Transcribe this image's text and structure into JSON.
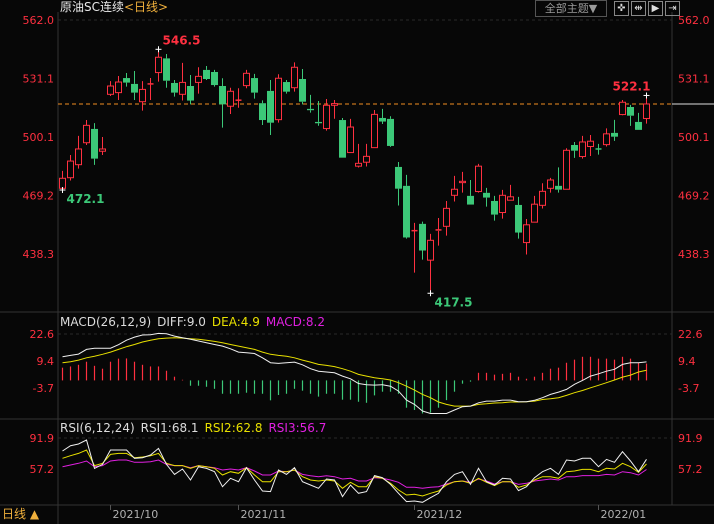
{
  "header": {
    "symbol": "原油SC连续",
    "period": "<日线>",
    "theme_button": "全部主题▼",
    "tools": [
      {
        "icon": "crosshair-icon",
        "glyph": "✜"
      },
      {
        "icon": "fit-range-icon",
        "glyph": "⇹"
      },
      {
        "icon": "play-step-icon",
        "glyph": "▶"
      },
      {
        "icon": "jump-end-icon",
        "glyph": "⇥"
      }
    ]
  },
  "footer": {
    "period_label": "日线",
    "period_arrow": "▲"
  },
  "colors": {
    "up": "#ff3040",
    "down": "#3cc878",
    "diff": "#f0f0f0",
    "dea": "#e8e000",
    "rsi3": "#e020e0",
    "axis_label": "#ff3040",
    "last_price_line": "#f08c20"
  },
  "chart_data": [
    {
      "type": "candlestick",
      "title": "原油SC连续",
      "y_ticks": [
        562.0,
        531.1,
        500.1,
        469.2,
        438.3
      ],
      "ylim": [
        417.5,
        562.0
      ],
      "x_tick_labels": [
        {
          "index": 6,
          "label": "2021/10"
        },
        {
          "index": 22,
          "label": "2021/11"
        },
        {
          "index": 44,
          "label": "2021/12"
        },
        {
          "index": 67,
          "label": "2022/01"
        }
      ],
      "last_price": 517.6,
      "annotations": [
        {
          "index": 12,
          "value": 546.5,
          "label": "546.5",
          "kind": "high"
        },
        {
          "index": 0,
          "value": 472.1,
          "label": "472.1",
          "kind": "low"
        },
        {
          "index": 46,
          "value": 417.5,
          "label": "417.5",
          "kind": "low"
        },
        {
          "index": 73,
          "value": 522.1,
          "label": "522.1",
          "kind": "high"
        }
      ],
      "ohlc_fields": [
        "open",
        "high",
        "low",
        "close"
      ],
      "ohlc": [
        [
          473,
          482.2,
          472.1,
          478.3
        ],
        [
          478.6,
          490.6,
          477.1,
          487.4
        ],
        [
          485.5,
          500.7,
          483.4,
          493.8
        ],
        [
          497.1,
          509.1,
          495.9,
          506.3
        ],
        [
          504.4,
          507.5,
          485.4,
          488.7
        ],
        [
          492.6,
          500.1,
          490.6,
          493.8
        ],
        [
          522.7,
          529.7,
          521.8,
          527.1
        ],
        [
          523.6,
          532.4,
          519.7,
          529.2
        ],
        [
          531.3,
          534,
          526.8,
          528.9
        ],
        [
          528.2,
          535,
          519.7,
          523.6
        ],
        [
          518.8,
          529.7,
          514.1,
          525.3
        ],
        [
          527.8,
          531.3,
          519.7,
          528.2
        ],
        [
          534.2,
          546.5,
          529.4,
          542.3
        ],
        [
          541.7,
          544,
          526.2,
          529.9
        ],
        [
          528.7,
          530.3,
          521.5,
          523.6
        ],
        [
          522.7,
          539.3,
          519.4,
          529
        ],
        [
          527.1,
          532.9,
          517.4,
          519.4
        ],
        [
          529,
          537,
          523.1,
          532.2
        ],
        [
          535.6,
          537.7,
          530.3,
          530.8
        ],
        [
          534.5,
          535.6,
          526.8,
          527.6
        ],
        [
          527.1,
          531.2,
          505.1,
          517.4
        ],
        [
          516.4,
          526.2,
          512.3,
          524.3
        ],
        [
          519.4,
          525.9,
          515.6,
          519.6
        ],
        [
          527.3,
          535.6,
          525.9,
          533.8
        ],
        [
          531.3,
          533.5,
          520.4,
          523.6
        ],
        [
          518,
          519.5,
          506.5,
          509.1
        ],
        [
          524.5,
          530.3,
          501.2,
          507.7
        ],
        [
          509.3,
          533.3,
          507.7,
          531.2
        ],
        [
          529.2,
          530.3,
          523.1,
          524.1
        ],
        [
          526.2,
          539.6,
          524.1,
          537
        ],
        [
          530.8,
          536.1,
          517.4,
          518.8
        ],
        [
          515,
          522.4,
          513,
          514.3
        ],
        [
          508.1,
          519.2,
          506.1,
          507.4
        ],
        [
          504.6,
          520.2,
          503.5,
          516.9
        ],
        [
          516.9,
          519.7,
          509.8,
          517.8
        ],
        [
          509.1,
          510.2,
          489.2,
          489.2
        ],
        [
          491.9,
          509.7,
          491.9,
          505.4
        ],
        [
          484.7,
          496.5,
          484,
          486.2
        ],
        [
          486.8,
          496.5,
          484.5,
          489.9
        ],
        [
          494.5,
          514.4,
          494.5,
          512.1
        ],
        [
          510.2,
          515,
          507,
          508.3
        ],
        [
          509.7,
          511.1,
          494.9,
          495.4
        ],
        [
          484.3,
          486.9,
          463.9,
          472.8
        ],
        [
          474.3,
          480.1,
          446.4,
          447
        ],
        [
          450.5,
          454.7,
          428.4,
          450.6
        ],
        [
          454.2,
          455.4,
          435.3,
          440.1
        ],
        [
          435,
          448.9,
          417.5,
          445.5
        ],
        [
          450.5,
          457.3,
          442.7,
          451
        ],
        [
          452.9,
          466.3,
          448,
          462.4
        ],
        [
          469.3,
          479.6,
          466,
          472.5
        ],
        [
          476,
          481.7,
          470.7,
          476.7
        ],
        [
          469,
          477.4,
          464.4,
          464.4
        ],
        [
          471.3,
          485.9,
          470.7,
          484.7
        ],
        [
          470.6,
          473.2,
          463.3,
          468.1
        ],
        [
          466.3,
          469,
          455.9,
          459.1
        ],
        [
          460.2,
          472.2,
          457,
          469.3
        ],
        [
          466.7,
          474.8,
          466.7,
          468.5
        ],
        [
          464.2,
          468.5,
          446.4,
          449.6
        ],
        [
          444.3,
          456.8,
          438,
          453.7
        ],
        [
          455.1,
          469,
          455.1,
          464.6
        ],
        [
          464,
          475.7,
          462.3,
          471.4
        ],
        [
          473,
          478.5,
          470.7,
          477.4
        ],
        [
          474.3,
          484.1,
          470.7,
          472.3
        ],
        [
          472.5,
          494.2,
          472.5,
          493.1
        ],
        [
          495.9,
          497.5,
          489.1,
          492.9
        ],
        [
          489.8,
          500.7,
          488.7,
          497.5
        ],
        [
          495.1,
          501.2,
          490.1,
          497.9
        ],
        [
          493.8,
          496.5,
          490.8,
          493.5
        ],
        [
          496.1,
          504.7,
          495.1,
          501.8
        ],
        [
          502.3,
          509.2,
          498.1,
          500.3
        ],
        [
          512,
          519.7,
          511.6,
          518.5
        ],
        [
          516,
          517.1,
          506,
          511.4
        ],
        [
          508.1,
          512.9,
          503.9,
          503.9
        ],
        [
          509.9,
          522.1,
          507.2,
          517.6
        ]
      ]
    },
    {
      "type": "macd",
      "params": "MACD(26,12,9)",
      "legend": {
        "diff": "DIFF:9.0",
        "dea": "DEA:4.9",
        "macd": "MACD:8.2"
      },
      "y_ticks": [
        22.6,
        9.4,
        -3.7
      ],
      "diff": [
        11.5,
        12.2,
        12.8,
        15.1,
        15.7,
        15.7,
        15.7,
        17.4,
        19.6,
        21.1,
        22.1,
        22.2,
        22.9,
        22.7,
        21.6,
        20.8,
        20,
        19.2,
        18.3,
        17.5,
        16.7,
        15.4,
        13.8,
        13.5,
        13.1,
        11,
        8.6,
        8.3,
        8.6,
        8.9,
        7.6,
        5.7,
        4.5,
        4.1,
        3.7,
        2.1,
        0.8,
        -1.5,
        -2.1,
        -2.3,
        -2.1,
        -2.8,
        -5.2,
        -9.6,
        -11.7,
        -14.9,
        -16.1,
        -16.1,
        -16.1,
        -14.4,
        -12.8,
        -12.5,
        -10.9,
        -10.1,
        -10.1,
        -9.6,
        -9.6,
        -10.4,
        -10.4,
        -9.7,
        -8.4,
        -6.8,
        -5.7,
        -4.4,
        -1.9,
        0,
        2.1,
        3.2,
        4.5,
        5.4,
        7.8,
        8.6,
        8.6,
        9.0
      ],
      "dea": [
        8.6,
        9.1,
        9.9,
        11,
        11.8,
        12.7,
        13.8,
        15.1,
        16.4,
        17.5,
        18.7,
        19.6,
        20.3,
        20.6,
        20.8,
        20.6,
        20.3,
        20,
        19.6,
        19,
        18.3,
        17.5,
        16.7,
        15.9,
        15.1,
        13.8,
        12.7,
        12.2,
        11.8,
        11,
        9.9,
        8.9,
        7.8,
        7.3,
        6.7,
        5.7,
        4.5,
        2.9,
        2.1,
        1.3,
        0.8,
        0.2,
        -1.1,
        -2.8,
        -4.7,
        -6.8,
        -8.4,
        -10.5,
        -11.7,
        -12.5,
        -12.5,
        -12.5,
        -11.7,
        -11.4,
        -11,
        -10.9,
        -10.5,
        -10.5,
        -10.4,
        -10.1,
        -9.3,
        -8.9,
        -8.4,
        -7.3,
        -6,
        -4.9,
        -3.6,
        -2.4,
        -1.1,
        0.2,
        1.6,
        2.6,
        4.1,
        4.9
      ],
      "macd": [
        6.2,
        6.8,
        7.6,
        9.1,
        7.1,
        5.7,
        9.1,
        10.6,
        10.7,
        9.1,
        7.6,
        6.8,
        6.8,
        4.7,
        1.8,
        0.3,
        -2.6,
        -2.6,
        -3.1,
        -4.1,
        -6.5,
        -6.5,
        -6.5,
        -6,
        -6.5,
        -6.5,
        -9.7,
        -7.1,
        -6.5,
        -4.1,
        -5,
        -6.5,
        -7.9,
        -6.5,
        -6.5,
        -9.4,
        -9.4,
        -10.4,
        -10.9,
        -7.3,
        -5.5,
        -5.5,
        -6.5,
        -13.3,
        -14.4,
        -16.1,
        -15.7,
        -13.3,
        -9.6,
        -5.5,
        -1.6,
        -0.6,
        3.7,
        3.7,
        2.8,
        3.2,
        3.7,
        1.8,
        0.8,
        1.8,
        3.7,
        5.7,
        6.2,
        8.6,
        10.1,
        11.5,
        11.5,
        10.6,
        10.6,
        10.1,
        11.5,
        10.6,
        8.6,
        8.2
      ]
    },
    {
      "type": "rsi",
      "params": "RSI(6,12,24)",
      "legend": {
        "rsi1": "RSI1:68.1",
        "rsi2": "RSI2:62.8",
        "rsi3": "RSI3:56.7"
      },
      "y_ticks": [
        91.9,
        57.2
      ],
      "rsi1": [
        77.4,
        83.3,
        85.2,
        89.7,
        57.9,
        62.4,
        78.5,
        78.5,
        78.5,
        69.2,
        69.9,
        72.9,
        80.3,
        62.4,
        51.2,
        57.2,
        44.9,
        59.8,
        57.9,
        54.2,
        37.4,
        46.8,
        43,
        58.7,
        44.9,
        32.6,
        31.9,
        56.1,
        51.2,
        58.7,
        43,
        39.3,
        35.6,
        46,
        44.9,
        26.3,
        39.3,
        30,
        31.9,
        49.8,
        47.5,
        40,
        30,
        20.7,
        21.4,
        19.9,
        25.1,
        30,
        43,
        51.2,
        54.2,
        40,
        58,
        43,
        39.3,
        46.8,
        46,
        33,
        37.4,
        47.5,
        54.2,
        58,
        51.2,
        67.3,
        66.2,
        69.2,
        69.2,
        59.8,
        68,
        64.7,
        76.6,
        66.2,
        54.2,
        68.1
      ],
      "rsi2": [
        69.2,
        72.1,
        74.7,
        78.5,
        61,
        63.6,
        73.6,
        74.7,
        74.7,
        69.9,
        70.6,
        72.1,
        74.7,
        63.6,
        61,
        61,
        58,
        61,
        59.8,
        58,
        50.5,
        54.2,
        52.4,
        58.7,
        50.5,
        43,
        43,
        54.2,
        54.2,
        56.1,
        48.6,
        44.9,
        43.8,
        44.9,
        43.8,
        35.6,
        42.3,
        37.4,
        37.4,
        48.6,
        46.8,
        41.2,
        33.7,
        28.1,
        28.9,
        27,
        30,
        32.6,
        39.3,
        43,
        43.8,
        41.2,
        46.8,
        42.3,
        38.6,
        43,
        43,
        36.7,
        39.3,
        44.9,
        48.6,
        48.6,
        46.8,
        54.2,
        55,
        56.8,
        56.8,
        54.2,
        58,
        57.2,
        63.6,
        59.8,
        53.5,
        62.8
      ],
      "rsi3": [
        59.8,
        61.7,
        63.6,
        66.2,
        59.8,
        61,
        66.2,
        67.3,
        67.3,
        64.7,
        64.7,
        65.4,
        67.3,
        62.4,
        61,
        61,
        58.7,
        61,
        59.8,
        58.7,
        56.1,
        57.2,
        56.1,
        58.7,
        55,
        50.5,
        50.5,
        55,
        54.2,
        56.1,
        51.2,
        49.7,
        48.6,
        49.7,
        48.6,
        46,
        46.8,
        43.8,
        43.8,
        47.5,
        46.8,
        44.9,
        42.3,
        36.7,
        36.7,
        35.6,
        36.7,
        37.4,
        40.4,
        43,
        43.8,
        42.3,
        46,
        43.8,
        40.4,
        43,
        43,
        40,
        41.2,
        43.8,
        44.9,
        46,
        44.9,
        48.6,
        48.6,
        49.8,
        49.8,
        49.8,
        51.2,
        50.5,
        54.2,
        53.1,
        50.5,
        56.7
      ]
    }
  ]
}
